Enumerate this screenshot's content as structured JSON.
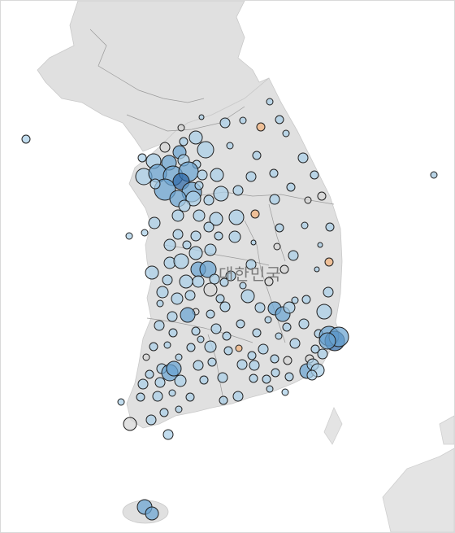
{
  "map": {
    "country_label": "대한민국",
    "colors": {
      "water": "#ffffff",
      "land": "#e0e0e0",
      "admin_border": "#9a9a9a",
      "mark_light": "#a9cfe8",
      "mark_mid": "#6aa3d1",
      "mark_dark": "#2e6aa8",
      "mark_grey": "#d6d6d6",
      "mark_orange": "#f2b27a",
      "mark_outline": "#1f1f1f"
    },
    "mark_style": "proportional circles, semi-transparent fill with dark outline"
  }
}
